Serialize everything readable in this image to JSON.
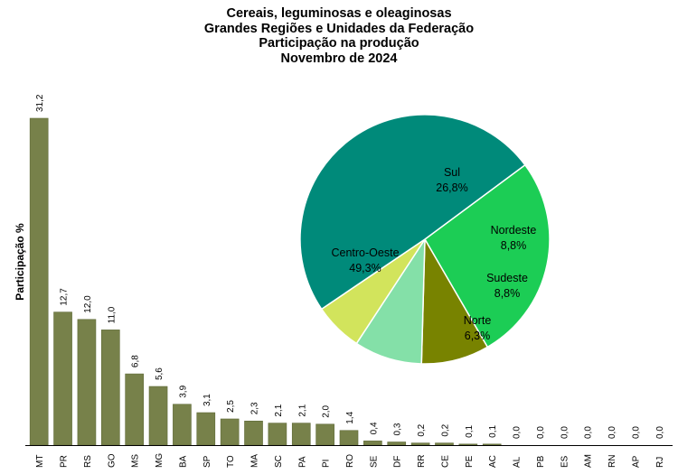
{
  "titles": {
    "line1": "Cereais, leguminosas e oleaginosas",
    "line2": "Grandes Regiões e Unidades da Federação",
    "line3": "Participação na produção",
    "line4": "Novembro de 2024"
  },
  "colors": {
    "bar": "#77814a",
    "bar_edge": "#5f6a38",
    "axis": "#000000"
  },
  "chart_data": [
    {
      "type": "bar",
      "ylabel": "Participação %",
      "ylim": [
        0,
        32
      ],
      "grid": false,
      "categories": [
        "MT",
        "PR",
        "RS",
        "GO",
        "MS",
        "MG",
        "BA",
        "SP",
        "TO",
        "MA",
        "SC",
        "PA",
        "PI",
        "RO",
        "SE",
        "DF",
        "RR",
        "CE",
        "PE",
        "AC",
        "AL",
        "PB",
        "ES",
        "AM",
        "RN",
        "AP",
        "RJ"
      ],
      "values": [
        31.2,
        12.7,
        12.0,
        11.0,
        6.8,
        5.6,
        3.9,
        3.1,
        2.5,
        2.3,
        2.1,
        2.1,
        2.0,
        1.4,
        0.4,
        0.3,
        0.2,
        0.2,
        0.1,
        0.1,
        0.0,
        0.0,
        0.0,
        0.0,
        0.0,
        0.0,
        0.0
      ],
      "value_labels": [
        "31,2",
        "12,7",
        "12,0",
        "11,0",
        "6,8",
        "5,6",
        "3,9",
        "3,1",
        "2,5",
        "2,3",
        "2,1",
        "2,1",
        "2,0",
        "1,4",
        "0,4",
        "0,3",
        "0,2",
        "0,2",
        "0,1",
        "0,1",
        "0,0",
        "0,0",
        "0,0",
        "0,0",
        "0,0",
        "0,0",
        "0,0"
      ]
    },
    {
      "type": "pie",
      "slices": [
        {
          "name": "Sul",
          "value": 26.8,
          "label": "26,8%",
          "color": "#1ccd55"
        },
        {
          "name": "Nordeste",
          "value": 8.8,
          "label": "8,8%",
          "color": "#788300"
        },
        {
          "name": "Sudeste",
          "value": 8.8,
          "label": "8,8%",
          "color": "#84e0a8"
        },
        {
          "name": "Norte",
          "value": 6.3,
          "label": "6,3%",
          "color": "#d2e45c"
        },
        {
          "name": "Centro-Oeste",
          "value": 49.3,
          "label": "49,3%",
          "color": "#008a7a"
        }
      ]
    }
  ]
}
